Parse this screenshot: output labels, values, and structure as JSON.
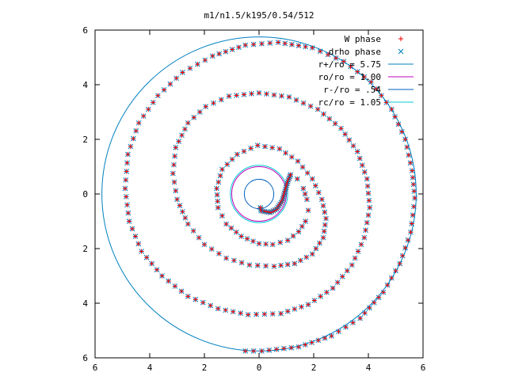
{
  "chart_data": {
    "type": "scatter",
    "title": "m1/n1.5/k195/0.54/512",
    "xlim": [
      -6,
      6
    ],
    "ylim": [
      -6,
      6
    ],
    "x_ticks": [
      -6,
      -4,
      -2,
      0,
      2,
      4,
      6
    ],
    "y_ticks": [
      -6,
      -4,
      -2,
      0,
      2,
      4,
      6
    ],
    "x_tick_labels": [
      "6",
      "4",
      "2",
      "0",
      "2",
      "4",
      "6"
    ],
    "y_tick_labels": [
      "6",
      "4",
      "2",
      "0",
      "2",
      "4",
      "6"
    ],
    "grid": false,
    "legend_position": "top-right",
    "series": [
      {
        "name": "W phase",
        "kind": "points",
        "marker": "plus",
        "color": "#ff0000"
      },
      {
        "name": "drho phase",
        "kind": "points",
        "marker": "cross",
        "color": "#0080c0"
      },
      {
        "name": "r+/ro = 5.75",
        "kind": "circle",
        "radius": 5.75,
        "color": "#0080c0"
      },
      {
        "name": "ro/ro = 1.00",
        "kind": "circle",
        "radius": 1.0,
        "color": "#c000c0"
      },
      {
        "name": "r-/ro = .54",
        "kind": "circle",
        "radius": 0.54,
        "color": "#0060c0"
      },
      {
        "name": "rc/ro = 1.05",
        "kind": "circle",
        "radius": 1.05,
        "color": "#00d0d0"
      }
    ],
    "spiral_points": [
      [
        1.15,
        0.7
      ],
      [
        1.4,
        0.55
      ],
      [
        1.62,
        0.2
      ],
      [
        1.75,
        -0.2
      ],
      [
        1.8,
        -0.6
      ],
      [
        1.7,
        -1.0
      ],
      [
        1.45,
        -1.38
      ],
      [
        1.05,
        -1.7
      ],
      [
        0.5,
        -1.85
      ],
      [
        0.0,
        -1.82
      ],
      [
        -0.65,
        -1.55
      ],
      [
        -1.2,
        -1.1
      ],
      [
        -1.5,
        -0.5
      ],
      [
        -1.55,
        0.2
      ],
      [
        -1.35,
        0.9
      ],
      [
        -0.8,
        1.45
      ],
      [
        -0.05,
        1.78
      ],
      [
        0.75,
        1.65
      ],
      [
        1.42,
        1.2
      ],
      [
        1.95,
        0.55
      ],
      [
        2.3,
        -0.2
      ],
      [
        2.45,
        -0.9
      ],
      [
        2.35,
        -1.6
      ],
      [
        1.95,
        -2.2
      ],
      [
        1.3,
        -2.55
      ],
      [
        0.55,
        -2.65
      ],
      [
        -0.35,
        -2.6
      ],
      [
        -1.2,
        -2.35
      ],
      [
        -2.0,
        -1.85
      ],
      [
        -2.6,
        -1.1
      ],
      [
        -3.0,
        -0.2
      ],
      [
        -3.15,
        0.75
      ],
      [
        -3.05,
        1.7
      ],
      [
        -2.6,
        2.6
      ],
      [
        -1.95,
        3.2
      ],
      [
        -1.1,
        3.58
      ],
      [
        0.0,
        3.7
      ],
      [
        1.1,
        3.55
      ],
      [
        2.15,
        3.1
      ],
      [
        3.0,
        2.4
      ],
      [
        3.6,
        1.55
      ],
      [
        3.95,
        0.55
      ],
      [
        4.05,
        -0.5
      ],
      [
        3.85,
        -1.6
      ],
      [
        3.4,
        -2.6
      ],
      [
        2.7,
        -3.45
      ],
      [
        1.8,
        -4.05
      ],
      [
        0.8,
        -4.38
      ],
      [
        -0.4,
        -4.42
      ],
      [
        -1.5,
        -4.2
      ],
      [
        -2.6,
        -3.75
      ],
      [
        -3.55,
        -3.0
      ],
      [
        -4.3,
        -2.1
      ],
      [
        -4.75,
        -1.0
      ],
      [
        -4.9,
        0.2
      ],
      [
        -4.8,
        1.45
      ],
      [
        -4.4,
        2.6
      ],
      [
        -3.7,
        3.6
      ],
      [
        -2.8,
        4.45
      ],
      [
        -1.7,
        5.05
      ],
      [
        -0.5,
        5.45
      ],
      [
        0.7,
        5.55
      ],
      [
        1.95,
        5.35
      ],
      [
        3.1,
        4.85
      ],
      [
        4.1,
        4.1
      ],
      [
        4.85,
        3.1
      ],
      [
        5.35,
        2.0
      ],
      [
        5.6,
        0.85
      ],
      [
        5.7,
        -0.15
      ],
      [
        5.55,
        -1.4
      ],
      [
        5.15,
        -2.55
      ],
      [
        4.55,
        -3.6
      ],
      [
        3.7,
        -4.55
      ],
      [
        2.65,
        -5.2
      ],
      [
        1.45,
        -5.6
      ],
      [
        0.1,
        -5.75
      ],
      [
        -0.5,
        -5.75
      ]
    ],
    "tail_hook_points": [
      [
        1.15,
        0.7
      ],
      [
        1.05,
        0.45
      ],
      [
        0.95,
        0.1
      ],
      [
        0.85,
        -0.25
      ],
      [
        0.65,
        -0.55
      ],
      [
        0.4,
        -0.68
      ],
      [
        0.08,
        -0.62
      ],
      [
        0.05,
        -0.5
      ]
    ]
  }
}
